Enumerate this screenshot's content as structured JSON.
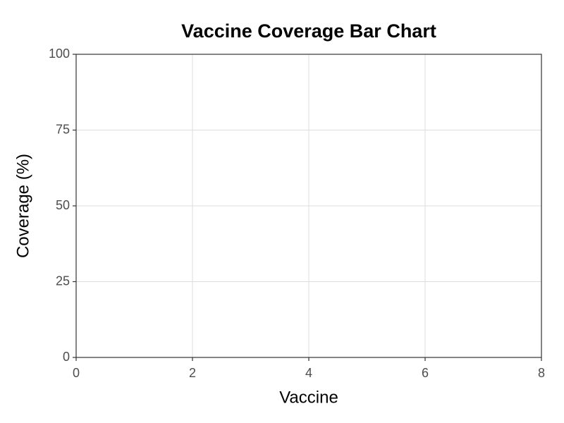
{
  "chart_data": {
    "type": "bar",
    "title": "Vaccine Coverage Bar Chart",
    "x_label": "Vaccine",
    "y_label": "Coverage (%)",
    "xlim": [
      0,
      8
    ],
    "xticks": [
      0,
      2,
      4,
      6,
      8
    ],
    "ylim": [
      0,
      100
    ],
    "yticks": [
      0,
      25,
      50,
      75,
      100
    ],
    "grid": true
  }
}
